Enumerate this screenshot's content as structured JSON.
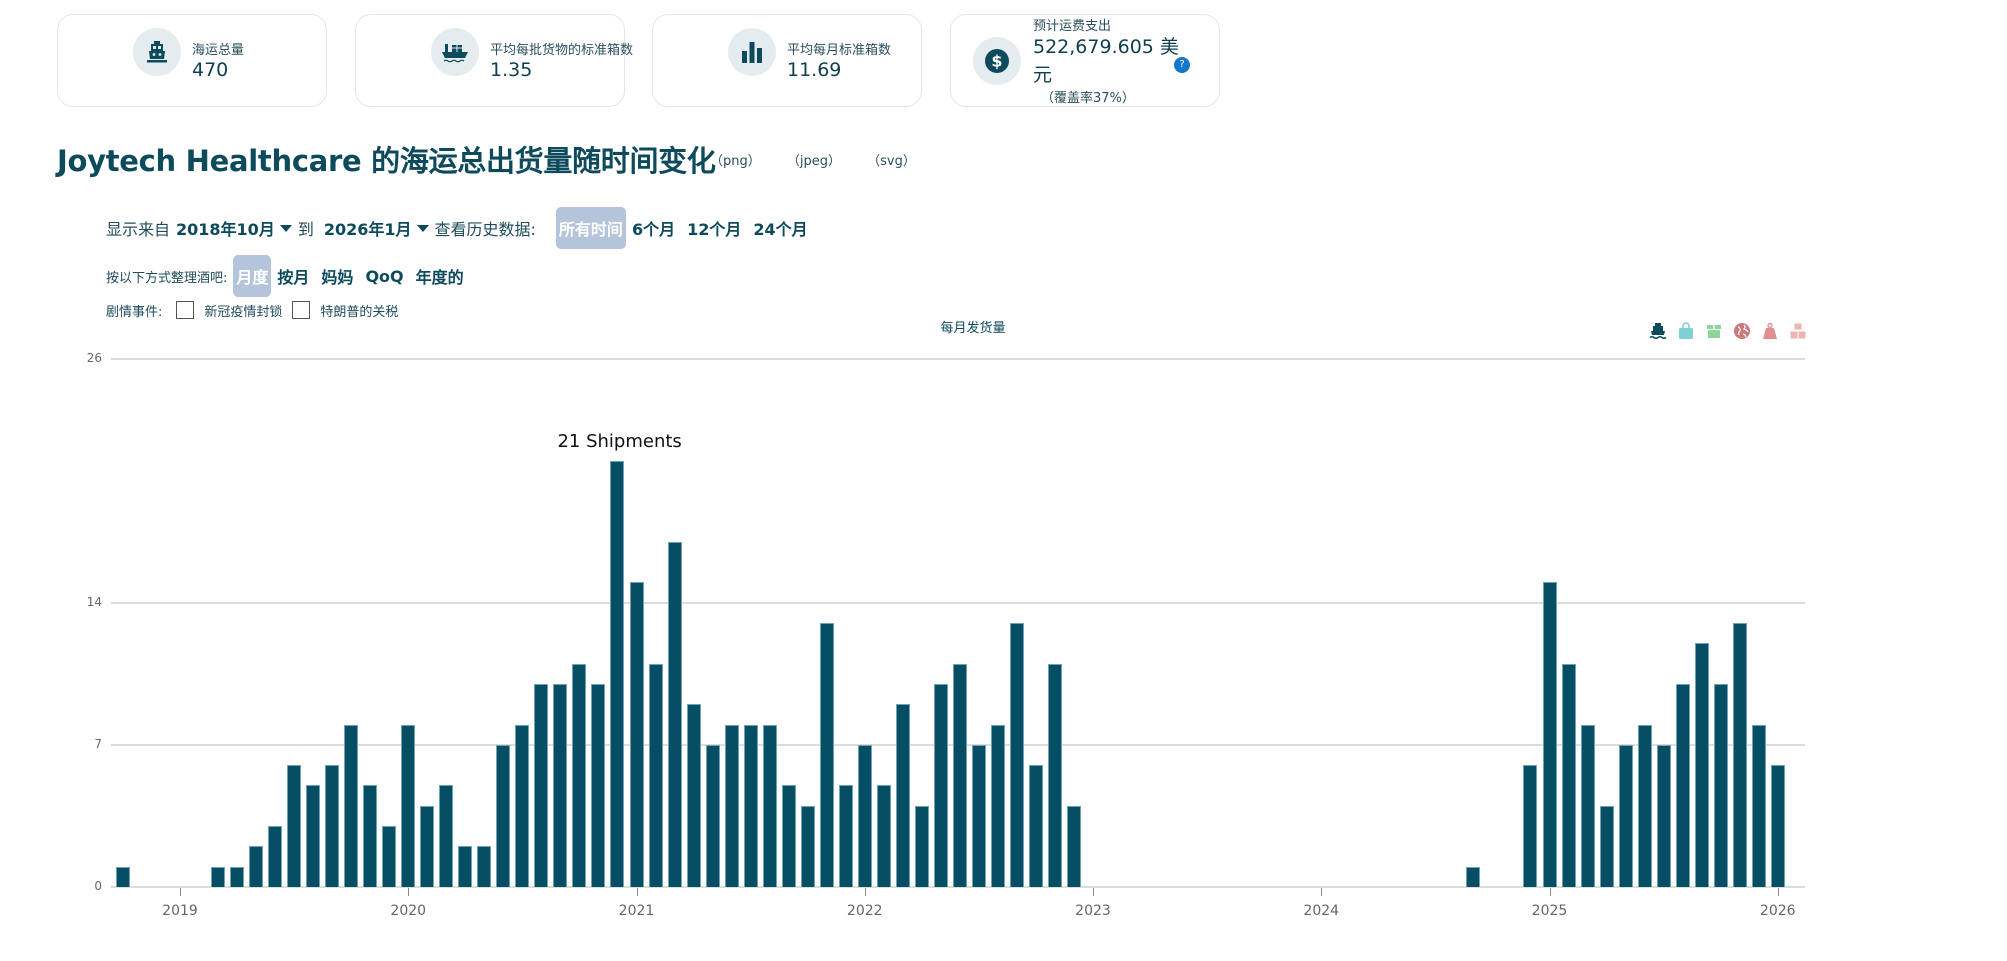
{
  "stats": [
    {
      "label": "海运总量",
      "value": "470",
      "icon": "ship-icon"
    },
    {
      "label": "平均每批货物的标准箱数",
      "value": "1.35",
      "icon": "cargo-ship-icon"
    },
    {
      "label": "平均每月标准箱数",
      "value": "11.69",
      "icon": "bar-chart-icon"
    },
    {
      "label": "预计运费支出",
      "value": "522,679.605 美元",
      "sub": "（覆盖率37%）",
      "icon": "dollar-icon",
      "help": "?"
    }
  ],
  "title": "Joytech Healthcare 的海运总出货量随时间变化",
  "exports": [
    "（png）",
    "（jpeg）",
    "（svg）"
  ],
  "controls": {
    "range_prefix": "显示来自",
    "from": "2018年10月",
    "to_word": "到",
    "to": "2026年1月",
    "history_label": "查看历史数据:",
    "history_options": [
      "所有时间",
      "6个月",
      "12个月",
      "24个月"
    ],
    "history_active": 0,
    "group_label": "按以下方式整理酒吧:",
    "group_options": [
      "月度",
      "按月",
      "妈妈",
      "QoQ",
      "年度的"
    ],
    "group_active": 0,
    "events_label": "剧情事件:",
    "events": [
      {
        "label": "新冠疫情封锁",
        "checked": false
      },
      {
        "label": "特朗普的关税",
        "checked": false
      }
    ]
  },
  "legend_icons": [
    {
      "name": "ship-icon",
      "color": "#0d4a5c"
    },
    {
      "name": "bag-icon",
      "color": "#7fcfd6"
    },
    {
      "name": "box-icon",
      "color": "#8fd49a"
    },
    {
      "name": "globe-icon",
      "color": "#c97b7b"
    },
    {
      "name": "weight-icon",
      "color": "#e08f8f"
    },
    {
      "name": "boxes-icon",
      "color": "#efb3b3"
    }
  ],
  "chart_data": {
    "type": "bar",
    "title": "每月发货量",
    "xlabel": "",
    "ylabel": "",
    "ylim": [
      0,
      26
    ],
    "yticks": [
      0,
      7,
      14,
      26
    ],
    "xticks": [
      "2019",
      "2020",
      "2021",
      "2022",
      "2023",
      "2024",
      "2025",
      "2026"
    ],
    "grid": true,
    "bar_color": "#064e63",
    "annotation": {
      "text": "21 Shipments",
      "category": "2020-12"
    },
    "categories": [
      "2018-10",
      "2018-11",
      "2018-12",
      "2019-01",
      "2019-02",
      "2019-03",
      "2019-04",
      "2019-05",
      "2019-06",
      "2019-07",
      "2019-08",
      "2019-09",
      "2019-10",
      "2019-11",
      "2019-12",
      "2020-01",
      "2020-02",
      "2020-03",
      "2020-04",
      "2020-05",
      "2020-06",
      "2020-07",
      "2020-08",
      "2020-09",
      "2020-10",
      "2020-11",
      "2020-12",
      "2021-01",
      "2021-02",
      "2021-03",
      "2021-04",
      "2021-05",
      "2021-06",
      "2021-07",
      "2021-08",
      "2021-09",
      "2021-10",
      "2021-11",
      "2021-12",
      "2022-01",
      "2022-02",
      "2022-03",
      "2022-04",
      "2022-05",
      "2022-06",
      "2022-07",
      "2022-08",
      "2022-09",
      "2022-10",
      "2022-11",
      "2022-12",
      "2023-01",
      "2023-02",
      "2023-03",
      "2023-04",
      "2023-05",
      "2023-06",
      "2023-07",
      "2023-08",
      "2023-09",
      "2023-10",
      "2023-11",
      "2023-12",
      "2024-01",
      "2024-02",
      "2024-03",
      "2024-04",
      "2024-05",
      "2024-06",
      "2024-07",
      "2024-08",
      "2024-09",
      "2024-10",
      "2024-11",
      "2024-12",
      "2025-01",
      "2025-02",
      "2025-03",
      "2025-04",
      "2025-05",
      "2025-06",
      "2025-07",
      "2025-08",
      "2025-09",
      "2025-10",
      "2025-11",
      "2025-12",
      "2026-01"
    ],
    "values": [
      1,
      0,
      0,
      0,
      0,
      1,
      1,
      2,
      3,
      6,
      5,
      6,
      8,
      5,
      3,
      8,
      4,
      5,
      2,
      2,
      7,
      8,
      10,
      10,
      11,
      10,
      21,
      15,
      11,
      17,
      9,
      7,
      8,
      8,
      8,
      5,
      4,
      13,
      5,
      7,
      5,
      9,
      4,
      10,
      11,
      7,
      8,
      13,
      6,
      11,
      4,
      0,
      0,
      0,
      0,
      0,
      0,
      0,
      0,
      0,
      0,
      0,
      0,
      0,
      0,
      0,
      0,
      0,
      0,
      0,
      0,
      1,
      0,
      0,
      6,
      15,
      11,
      8,
      4,
      7,
      8,
      7,
      10,
      12,
      10,
      13,
      8,
      6
    ]
  }
}
